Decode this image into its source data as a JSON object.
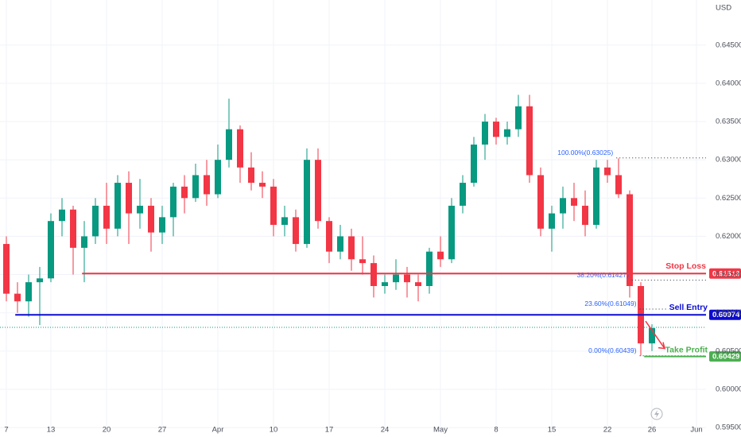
{
  "chart_data": {
    "type": "candlestick",
    "currency": "USD",
    "open": [
      0.619,
      0.6125,
      0.6115,
      0.614,
      0.6145,
      0.622,
      0.6235,
      0.6185,
      0.62,
      0.624,
      0.621,
      0.627,
      0.623,
      0.624,
      0.6205,
      0.6225,
      0.6265,
      0.625,
      0.628,
      0.6255,
      0.63,
      0.634,
      0.629,
      0.627,
      0.6265,
      0.6215,
      0.6225,
      0.619,
      0.63,
      0.622,
      0.618,
      0.62,
      0.617,
      0.6165,
      0.6135,
      0.614,
      0.615,
      0.614,
      0.6135,
      0.618,
      0.617,
      0.624,
      0.627,
      0.632,
      0.635,
      0.633,
      0.634,
      0.637,
      0.628,
      0.621,
      0.623,
      0.625,
      0.624,
      0.6215,
      0.629,
      0.628,
      0.6255,
      0.6135,
      0.606
    ],
    "high": [
      0.62,
      0.614,
      0.615,
      0.616,
      0.623,
      0.625,
      0.624,
      0.622,
      0.625,
      0.627,
      0.628,
      0.6285,
      0.6275,
      0.625,
      0.624,
      0.627,
      0.628,
      0.6295,
      0.63,
      0.632,
      0.638,
      0.6345,
      0.631,
      0.6285,
      0.6275,
      0.624,
      0.6235,
      0.6315,
      0.6315,
      0.6225,
      0.6215,
      0.621,
      0.62,
      0.6175,
      0.615,
      0.617,
      0.616,
      0.615,
      0.6185,
      0.62,
      0.625,
      0.628,
      0.633,
      0.636,
      0.6355,
      0.635,
      0.6385,
      0.6385,
      0.629,
      0.624,
      0.6265,
      0.627,
      0.626,
      0.63,
      0.63,
      0.6302,
      0.626,
      0.614,
      0.6085
    ],
    "low": [
      0.6115,
      0.61,
      0.6095,
      0.6084,
      0.614,
      0.62,
      0.615,
      0.614,
      0.619,
      0.619,
      0.62,
      0.619,
      0.621,
      0.618,
      0.619,
      0.62,
      0.623,
      0.6245,
      0.624,
      0.625,
      0.629,
      0.627,
      0.626,
      0.625,
      0.62,
      0.62,
      0.618,
      0.6185,
      0.621,
      0.6165,
      0.617,
      0.6155,
      0.615,
      0.612,
      0.6125,
      0.613,
      0.612,
      0.6115,
      0.6125,
      0.616,
      0.6165,
      0.623,
      0.6265,
      0.63,
      0.632,
      0.632,
      0.633,
      0.627,
      0.62,
      0.618,
      0.621,
      0.622,
      0.62,
      0.621,
      0.627,
      0.625,
      0.612,
      0.6044,
      0.605
    ],
    "close": [
      0.6125,
      0.6115,
      0.614,
      0.6145,
      0.622,
      0.6235,
      0.6185,
      0.62,
      0.624,
      0.621,
      0.627,
      0.623,
      0.624,
      0.6205,
      0.6225,
      0.6265,
      0.625,
      0.628,
      0.6255,
      0.63,
      0.634,
      0.629,
      0.627,
      0.6265,
      0.6215,
      0.6225,
      0.619,
      0.63,
      0.622,
      0.618,
      0.62,
      0.617,
      0.6165,
      0.6135,
      0.614,
      0.615,
      0.614,
      0.6135,
      0.618,
      0.617,
      0.624,
      0.627,
      0.632,
      0.635,
      0.633,
      0.634,
      0.637,
      0.628,
      0.621,
      0.623,
      0.625,
      0.624,
      0.6215,
      0.629,
      0.628,
      0.6255,
      0.6135,
      0.606,
      0.608
    ],
    "up_color": "#089981",
    "down_color": "#f23645",
    "last_price": 0.6081,
    "xlim": [
      -0.571,
      62.857
    ],
    "xticks": [
      {
        "value": 0,
        "label": "7"
      },
      {
        "value": 4,
        "label": "13"
      },
      {
        "value": 9,
        "label": "20"
      },
      {
        "value": 14,
        "label": "27"
      },
      {
        "value": 19,
        "label": "Apr"
      },
      {
        "value": 24,
        "label": "10"
      },
      {
        "value": 29,
        "label": "17"
      },
      {
        "value": 34,
        "label": "24"
      },
      {
        "value": 39,
        "label": "May"
      },
      {
        "value": 44,
        "label": "8"
      },
      {
        "value": 49,
        "label": "15"
      },
      {
        "value": 54,
        "label": "22"
      },
      {
        "value": 58,
        "label": "26"
      },
      {
        "value": 62,
        "label": "Jun"
      }
    ],
    "ylim": [
      0.5948,
      0.6509
    ],
    "yticks": [
      {
        "value": 0.595,
        "label": "0.59500"
      },
      {
        "value": 0.6,
        "label": "0.60000"
      },
      {
        "value": 0.605,
        "label": "0.60500"
      },
      {
        "value": 0.61,
        "label": "0.61000"
      },
      {
        "value": 0.615,
        "label": "0.61500"
      },
      {
        "value": 0.62,
        "label": "0.62000"
      },
      {
        "value": 0.625,
        "label": "0.62500"
      },
      {
        "value": 0.63,
        "label": "0.63000"
      },
      {
        "value": 0.635,
        "label": "0.63500"
      },
      {
        "value": 0.64,
        "label": "0.64000"
      },
      {
        "value": 0.645,
        "label": "0.64500"
      }
    ],
    "levels": [
      {
        "name": "Stop Loss",
        "value": 0.61513,
        "color": "#f23645"
      },
      {
        "name": "Sell Entry",
        "value": 0.60974,
        "color": "#0c0ccf"
      },
      {
        "name": "Take Profit",
        "value": 0.60429,
        "color": "#4caf50"
      }
    ],
    "fib_levels": [
      {
        "label": "100.00%(0.63025)",
        "value": 0.63025
      },
      {
        "label": "38.20%(0.61427)",
        "value": 0.61427
      },
      {
        "label": "23.60%(0.61049)",
        "value": 0.61049
      },
      {
        "label": "0.00%(0.60439)",
        "value": 0.60439
      }
    ]
  }
}
